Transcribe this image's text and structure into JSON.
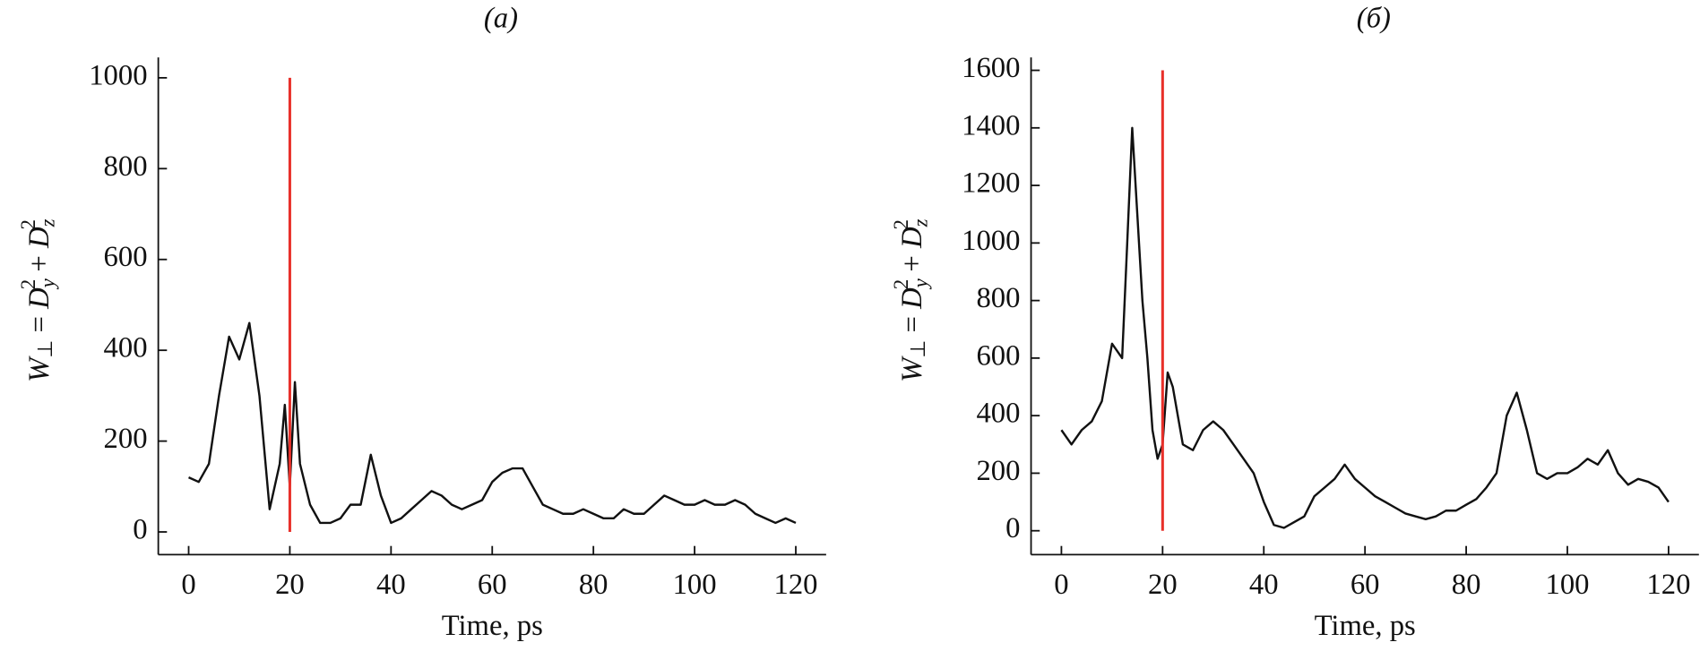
{
  "chart_data": [
    {
      "type": "line",
      "title": "(а)",
      "xlabel": "Time, ps",
      "ylabel_parts": [
        "W",
        "⊥",
        " = ",
        "D",
        "y",
        "2",
        " + ",
        "D",
        "z",
        "2"
      ],
      "xlim": [
        -6,
        126
      ],
      "ylim": [
        -50,
        1045
      ],
      "xticks": [
        0,
        20,
        40,
        60,
        80,
        100,
        120
      ],
      "yticks": [
        0,
        200,
        400,
        600,
        800,
        1000
      ],
      "vline": {
        "x": 20,
        "y": [
          0,
          1000
        ],
        "color": "#e8302a"
      },
      "series": [
        {
          "color": "#111111",
          "x": [
            0,
            2,
            4,
            6,
            8,
            10,
            12,
            14,
            16,
            18,
            19,
            20,
            21,
            22,
            24,
            26,
            28,
            30,
            32,
            34,
            36,
            38,
            40,
            42,
            44,
            46,
            48,
            50,
            52,
            54,
            56,
            58,
            60,
            62,
            64,
            66,
            68,
            70,
            72,
            74,
            76,
            78,
            80,
            82,
            84,
            86,
            88,
            90,
            92,
            94,
            96,
            98,
            100,
            102,
            104,
            106,
            108,
            110,
            112,
            114,
            116,
            118,
            120
          ],
          "values": [
            120,
            110,
            150,
            300,
            430,
            380,
            460,
            300,
            50,
            150,
            280,
            100,
            330,
            150,
            60,
            20,
            20,
            30,
            60,
            60,
            170,
            80,
            20,
            30,
            50,
            70,
            90,
            80,
            60,
            50,
            60,
            70,
            110,
            130,
            140,
            140,
            100,
            60,
            50,
            40,
            40,
            50,
            40,
            30,
            30,
            50,
            40,
            40,
            60,
            80,
            70,
            60,
            60,
            70,
            60,
            60,
            70,
            60,
            40,
            30,
            20,
            30,
            20
          ]
        }
      ]
    },
    {
      "type": "line",
      "title": "(б)",
      "xlabel": "Time, ps",
      "ylabel_parts": [
        "W",
        "⊥",
        " = ",
        "D",
        "y",
        "2",
        " + ",
        "D",
        "z",
        "2"
      ],
      "xlim": [
        -6,
        126
      ],
      "ylim": [
        -83,
        1645
      ],
      "xticks": [
        0,
        20,
        40,
        60,
        80,
        100,
        120
      ],
      "yticks": [
        0,
        200,
        400,
        600,
        800,
        1000,
        1200,
        1400,
        1600
      ],
      "vline": {
        "x": 20,
        "y": [
          0,
          1600
        ],
        "color": "#e8302a"
      },
      "series": [
        {
          "color": "#111111",
          "x": [
            0,
            2,
            4,
            6,
            8,
            10,
            12,
            13,
            14,
            15,
            16,
            17,
            18,
            19,
            20,
            21,
            22,
            24,
            26,
            28,
            30,
            32,
            34,
            36,
            38,
            40,
            42,
            44,
            46,
            48,
            50,
            52,
            54,
            56,
            58,
            60,
            62,
            64,
            66,
            68,
            70,
            72,
            74,
            76,
            78,
            80,
            82,
            84,
            86,
            88,
            90,
            92,
            94,
            96,
            98,
            100,
            102,
            104,
            106,
            108,
            110,
            112,
            114,
            116,
            118,
            120
          ],
          "values": [
            350,
            300,
            350,
            380,
            450,
            650,
            600,
            1000,
            1400,
            1100,
            800,
            600,
            350,
            250,
            300,
            550,
            500,
            300,
            280,
            350,
            380,
            350,
            300,
            250,
            200,
            100,
            20,
            10,
            30,
            50,
            120,
            150,
            180,
            230,
            180,
            150,
            120,
            100,
            80,
            60,
            50,
            40,
            50,
            70,
            70,
            90,
            110,
            150,
            200,
            400,
            480,
            350,
            200,
            180,
            200,
            200,
            220,
            250,
            230,
            280,
            200,
            160,
            180,
            170,
            150,
            100
          ]
        }
      ]
    }
  ]
}
